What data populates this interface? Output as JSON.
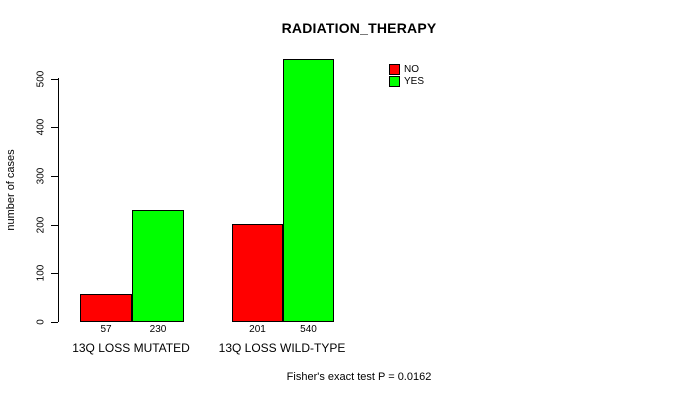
{
  "chart_data": {
    "type": "bar",
    "title": "RADIATION_THERAPY",
    "ylabel": "number of cases",
    "xlabel": "",
    "categories": [
      "13Q LOSS MUTATED",
      "13Q LOSS WILD-TYPE"
    ],
    "series": [
      {
        "name": "NO",
        "color": "#ff0000",
        "values": [
          57,
          201
        ]
      },
      {
        "name": "YES",
        "color": "#00ff00",
        "values": [
          230,
          540
        ]
      }
    ],
    "yticks": [
      0,
      100,
      200,
      300,
      400,
      500
    ],
    "ylim": [
      0,
      560
    ],
    "grid": false,
    "legend_position": "top-right",
    "bar_value_labels": [
      "57",
      "230",
      "201",
      "540"
    ],
    "annotation": "Fisher's exact test P = 0.0162"
  },
  "colors": {
    "axis": "#000000",
    "text": "#000000",
    "background": "#ffffff",
    "series_no": "#ff0000",
    "series_yes": "#00ff00"
  }
}
